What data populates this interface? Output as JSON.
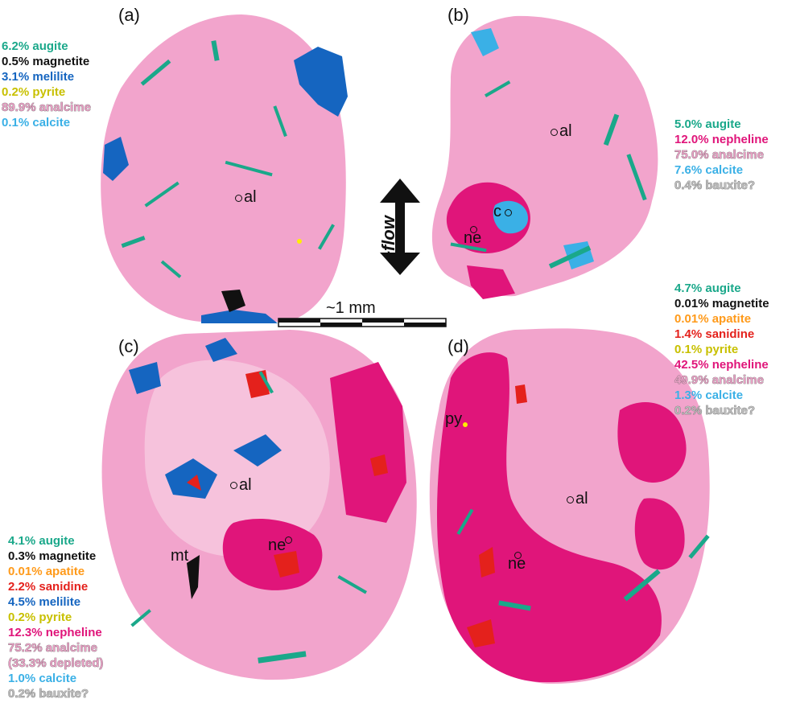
{
  "panels": [
    {
      "id": "a",
      "label": "(a)",
      "legend": [
        {
          "pct": "6.2%",
          "name": "augite",
          "color": "#1aa88a"
        },
        {
          "pct": "0.5%",
          "name": "magnetite",
          "color": "#111111"
        },
        {
          "pct": "3.1%",
          "name": "melilite",
          "color": "#1565c0"
        },
        {
          "pct": "0.2%",
          "name": "pyrite",
          "color": "#c8c000"
        },
        {
          "pct": "89.9%",
          "name": "analcime",
          "color": "#e8a0c4"
        },
        {
          "pct": "0.1%",
          "name": "calcite",
          "color": "#3ab0e6"
        }
      ],
      "markers": [
        {
          "text": "al"
        }
      ]
    },
    {
      "id": "b",
      "label": "(b)",
      "legend": [
        {
          "pct": "5.0%",
          "name": "augite",
          "color": "#1aa88a"
        },
        {
          "pct": "12.0%",
          "name": "nepheline",
          "color": "#e0157a"
        },
        {
          "pct": "75.0%",
          "name": "analcime",
          "color": "#e8a0c4"
        },
        {
          "pct": "7.6%",
          "name": "calcite",
          "color": "#3ab0e6"
        },
        {
          "pct": "0.4%",
          "name": "bauxite?",
          "color": "#bdbdbd"
        }
      ],
      "markers": [
        {
          "text": "al"
        },
        {
          "text": "c"
        },
        {
          "text": "ne"
        }
      ]
    },
    {
      "id": "c",
      "label": "(c)",
      "legend": [
        {
          "pct": "4.1%",
          "name": "augite",
          "color": "#1aa88a"
        },
        {
          "pct": "0.3%",
          "name": "magnetite",
          "color": "#111111"
        },
        {
          "pct": "0.01%",
          "name": "apatite",
          "color": "#ff9a1a"
        },
        {
          "pct": "2.2%",
          "name": "sanidine",
          "color": "#e4211c"
        },
        {
          "pct": "4.5%",
          "name": "melilite",
          "color": "#1565c0"
        },
        {
          "pct": "0.2%",
          "name": "pyrite",
          "color": "#c8c000"
        },
        {
          "pct": "12.3%",
          "name": "nepheline",
          "color": "#e0157a"
        },
        {
          "pct": "75.2%",
          "name": "analcime",
          "color": "#e8a0c4"
        },
        {
          "pct": "",
          "name": "(33.3% depleted)",
          "color": "#e8a0c4"
        },
        {
          "pct": "1.0%",
          "name": "calcite",
          "color": "#3ab0e6"
        },
        {
          "pct": "0.2%",
          "name": "bauxite?",
          "color": "#bdbdbd"
        }
      ],
      "markers": [
        {
          "text": "al"
        },
        {
          "text": "ne"
        },
        {
          "text": "mt"
        }
      ]
    },
    {
      "id": "d",
      "label": "(d)",
      "legend": [
        {
          "pct": "4.7%",
          "name": "augite",
          "color": "#1aa88a"
        },
        {
          "pct": "0.01%",
          "name": "magnetite",
          "color": "#111111"
        },
        {
          "pct": "0.01%",
          "name": "apatite",
          "color": "#ff9a1a"
        },
        {
          "pct": "1.4%",
          "name": "sanidine",
          "color": "#e4211c"
        },
        {
          "pct": "0.1%",
          "name": "pyrite",
          "color": "#c8c000"
        },
        {
          "pct": "42.5%",
          "name": "nepheline",
          "color": "#e0157a"
        },
        {
          "pct": "49.9%",
          "name": "analcime",
          "color": "#e8a0c4"
        },
        {
          "pct": "1.3%",
          "name": "calcite",
          "color": "#3ab0e6"
        },
        {
          "pct": "0.2%",
          "name": "bauxite?",
          "color": "#bdbdbd"
        }
      ],
      "markers": [
        {
          "text": "al"
        },
        {
          "text": "ne"
        },
        {
          "text": "py"
        }
      ]
    }
  ],
  "scale": {
    "label": "~1 mm"
  },
  "flow": {
    "label": "~flow"
  },
  "colors": {
    "analcime": "#f2a4cc",
    "analcime_light": "#f6c2dc",
    "nepheline": "#e0157a",
    "augite": "#1aa88a",
    "melilite": "#1565c0",
    "calcite": "#3ab0e6",
    "sanidine": "#e4211c",
    "magnetite": "#111111",
    "pyrite": "#ffee00"
  }
}
